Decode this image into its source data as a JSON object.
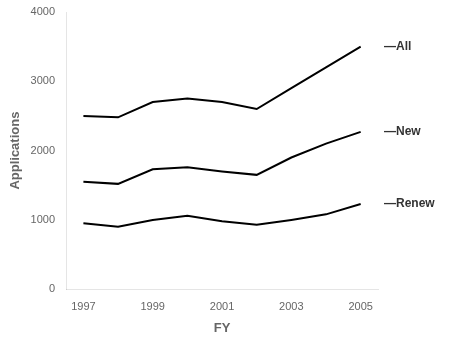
{
  "chart_data": {
    "type": "line",
    "x": [
      1997,
      1998,
      1999,
      2000,
      2001,
      2002,
      2003,
      2004,
      2005
    ],
    "series": [
      {
        "name": "—All",
        "color": "#000000",
        "values": [
          2500,
          2480,
          2700,
          2750,
          2700,
          2600,
          2900,
          3200,
          3500
        ]
      },
      {
        "name": "—New",
        "color": "#000000",
        "values": [
          1550,
          1520,
          1730,
          1760,
          1700,
          1650,
          1900,
          2100,
          2270
        ]
      },
      {
        "name": "—Renew",
        "color": "#000000",
        "values": [
          950,
          900,
          1000,
          1060,
          980,
          930,
          1000,
          1080,
          1230
        ]
      }
    ],
    "xlabel": "FY",
    "ylabel": "Applications",
    "xlim": [
      1996.5,
      2005.5
    ],
    "xticks": [
      1997,
      1999,
      2001,
      2003,
      2005
    ],
    "ylim": [
      0,
      4000
    ],
    "yticks": [
      0,
      1000,
      2000,
      3000,
      4000
    ],
    "grid": false
  }
}
